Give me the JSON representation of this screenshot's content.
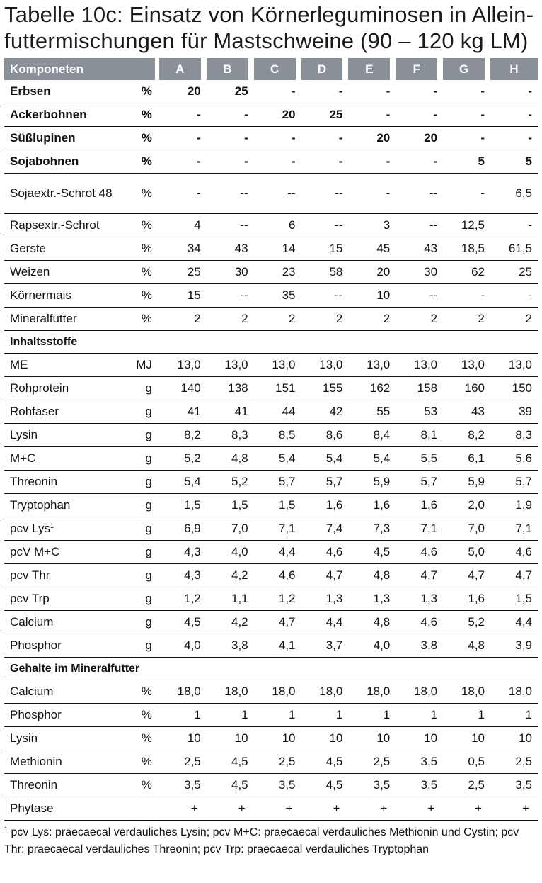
{
  "title": {
    "line1": "Tabelle 10c: Einsatz von Körnerleguminosen in Allein-",
    "line2": "futtermischungen für Mastschweine (90 – 120 kg LM)"
  },
  "header": {
    "label": "Komponeten",
    "columns": [
      "A",
      "B",
      "C",
      "D",
      "E",
      "F",
      "G",
      "H"
    ]
  },
  "komponenten": [
    {
      "name": "Erbsen",
      "unit": "%",
      "bold": true,
      "values": [
        "20",
        "25",
        "-",
        "-",
        "-",
        "-",
        "-",
        "-"
      ]
    },
    {
      "name": "Ackerbohnen",
      "unit": "%",
      "bold": true,
      "values": [
        "-",
        "-",
        "20",
        "25",
        "-",
        "-",
        "-",
        "-"
      ]
    },
    {
      "name": "Süßlupinen",
      "unit": "%",
      "bold": true,
      "values": [
        "-",
        "-",
        "-",
        "-",
        "20",
        "20",
        "-",
        "-"
      ]
    },
    {
      "name": "Sojabohnen",
      "unit": "%",
      "bold": true,
      "values": [
        "-",
        "-",
        "-",
        "-",
        "-",
        "-",
        "5",
        "5"
      ]
    },
    {
      "name": "Sojaextr.-Schrot 48",
      "unit": "%",
      "bold": false,
      "tall": true,
      "values": [
        "-",
        "--",
        "--",
        "--",
        "-",
        "--",
        "-",
        "6,5"
      ]
    },
    {
      "name": "Rapsextr.-Schrot",
      "unit": "%",
      "bold": false,
      "values": [
        "4",
        "--",
        "6",
        "--",
        "3",
        "--",
        "12,5",
        "-"
      ]
    },
    {
      "name": "Gerste",
      "unit": "%",
      "bold": false,
      "values": [
        "34",
        "43",
        "14",
        "15",
        "45",
        "43",
        "18,5",
        "61,5"
      ]
    },
    {
      "name": "Weizen",
      "unit": "%",
      "bold": false,
      "values": [
        "25",
        "30",
        "23",
        "58",
        "20",
        "30",
        "62",
        "25"
      ]
    },
    {
      "name": "Körnermais",
      "unit": "%",
      "bold": false,
      "values": [
        "15",
        "--",
        "35",
        "--",
        "10",
        "--",
        "-",
        "-"
      ]
    },
    {
      "name": "Mineralfutter",
      "unit": "%",
      "bold": false,
      "values": [
        "2",
        "2",
        "2",
        "2",
        "2",
        "2",
        "2",
        "2"
      ]
    }
  ],
  "inhaltsstoffe": {
    "heading": "Inhaltsstoffe",
    "rows": [
      {
        "name": "ME",
        "unit": "MJ",
        "values": [
          "13,0",
          "13,0",
          "13,0",
          "13,0",
          "13,0",
          "13,0",
          "13,0",
          "13,0"
        ]
      },
      {
        "name": "Rohprotein",
        "unit": "g",
        "values": [
          "140",
          "138",
          "151",
          "155",
          "162",
          "158",
          "160",
          "150"
        ]
      },
      {
        "name": "Rohfaser",
        "unit": "g",
        "values": [
          "41",
          "41",
          "44",
          "42",
          "55",
          "53",
          "43",
          "39"
        ]
      },
      {
        "name": "Lysin",
        "unit": "g",
        "values": [
          "8,2",
          "8,3",
          "8,5",
          "8,6",
          "8,4",
          "8,1",
          "8,2",
          "8,3"
        ]
      },
      {
        "name": "M+C",
        "unit": "g",
        "values": [
          "5,2",
          "4,8",
          "5,4",
          "5,4",
          "5,4",
          "5,5",
          "6,1",
          "5,6"
        ]
      },
      {
        "name": "Threonin",
        "unit": "g",
        "values": [
          "5,4",
          "5,2",
          "5,7",
          "5,7",
          "5,9",
          "5,7",
          "5,9",
          "5,7"
        ]
      },
      {
        "name": "Tryptophan",
        "unit": "g",
        "values": [
          "1,5",
          "1,5",
          "1,5",
          "1,6",
          "1,6",
          "1,6",
          "2,0",
          "1,9"
        ]
      },
      {
        "name": "pcv Lys",
        "sup": "1",
        "unit": "g",
        "values": [
          "6,9",
          "7,0",
          "7,1",
          "7,4",
          "7,3",
          "7,1",
          "7,0",
          "7,1"
        ]
      },
      {
        "name": "pcV M+C",
        "unit": "g",
        "values": [
          "4,3",
          "4,0",
          "4,4",
          "4,6",
          "4,5",
          "4,6",
          "5,0",
          "4,6"
        ]
      },
      {
        "name": "pcv Thr",
        "unit": "g",
        "values": [
          "4,3",
          "4,2",
          "4,6",
          "4,7",
          "4,8",
          "4,7",
          "4,7",
          "4,7"
        ]
      },
      {
        "name": "pcv Trp",
        "unit": "g",
        "values": [
          "1,2",
          "1,1",
          "1,2",
          "1,3",
          "1,3",
          "1,3",
          "1,6",
          "1,5"
        ]
      },
      {
        "name": "Calcium",
        "unit": "g",
        "values": [
          "4,5",
          "4,2",
          "4,7",
          "4,4",
          "4,8",
          "4,6",
          "5,2",
          "4,4"
        ]
      },
      {
        "name": "Phosphor",
        "unit": "g",
        "values": [
          "4,0",
          "3,8",
          "4,1",
          "3,7",
          "4,0",
          "3,8",
          "4,8",
          "3,9"
        ]
      }
    ]
  },
  "mineralfutter": {
    "heading": "Gehalte im Mineralfutter",
    "rows": [
      {
        "name": "Calcium",
        "unit": "%",
        "values": [
          "18,0",
          "18,0",
          "18,0",
          "18,0",
          "18,0",
          "18,0",
          "18,0",
          "18,0"
        ]
      },
      {
        "name": "Phosphor",
        "unit": "%",
        "values": [
          "1",
          "1",
          "1",
          "1",
          "1",
          "1",
          "1",
          "1"
        ]
      },
      {
        "name": "Lysin",
        "unit": "%",
        "values": [
          "10",
          "10",
          "10",
          "10",
          "10",
          "10",
          "10",
          "10"
        ]
      },
      {
        "name": "Methionin",
        "unit": "%",
        "values": [
          "2,5",
          "4,5",
          "2,5",
          "4,5",
          "2,5",
          "3,5",
          "0,5",
          "2,5"
        ]
      },
      {
        "name": "Threonin",
        "unit": "%",
        "values": [
          "3,5",
          "4,5",
          "3,5",
          "4,5",
          "3,5",
          "3,5",
          "2,5",
          "3,5"
        ]
      },
      {
        "name": "Phytase",
        "unit": "",
        "center": true,
        "values": [
          "+",
          "+",
          "+",
          "+",
          "+",
          "+",
          "+",
          "+"
        ]
      }
    ]
  },
  "footnote": {
    "marker": "1",
    "text": "pcv Lys: praecaecal verdauliches Lysin; pcv M+C: praecaecal verdauliches Methionin und Cystin; pcv Thr: praecaecal verdauliches Threonin; pcv Trp: praecaecal verdauliches Tryptophan"
  }
}
